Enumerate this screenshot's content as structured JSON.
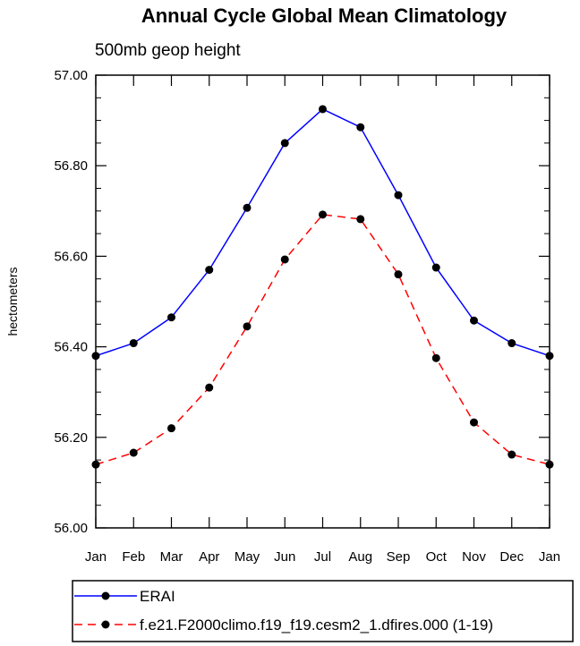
{
  "chart_data": {
    "type": "line",
    "title": "Annual Cycle Global Mean Climatology",
    "subtitle": "500mb geop height",
    "xlabel": "",
    "ylabel": "hectometers",
    "categories": [
      "Jan",
      "Feb",
      "Mar",
      "Apr",
      "May",
      "Jun",
      "Jul",
      "Aug",
      "Sep",
      "Oct",
      "Nov",
      "Dec",
      "Jan"
    ],
    "ylim": [
      56.0,
      57.0
    ],
    "yticks": [
      56.0,
      56.2,
      56.4,
      56.6,
      56.8,
      57.0
    ],
    "ytick_labels": [
      "56.00",
      "56.20",
      "56.40",
      "56.60",
      "56.80",
      "57.00"
    ],
    "y_minor_step": 0.05,
    "grid": false,
    "legend_position": "bottom",
    "series": [
      {
        "name": "ERAI",
        "color": "#0000ff",
        "line_style": "solid",
        "marker": "circle",
        "values": [
          56.38,
          56.408,
          56.465,
          56.57,
          56.707,
          56.85,
          56.925,
          56.885,
          56.735,
          56.575,
          56.458,
          56.408,
          56.38
        ]
      },
      {
        "name": "f.e21.F2000climo.f19_f19.cesm2_1.dfires.000 (1-19)",
        "color": "#ff0000",
        "line_style": "dashed",
        "marker": "circle",
        "values": [
          56.14,
          56.166,
          56.22,
          56.31,
          56.445,
          56.593,
          56.692,
          56.682,
          56.56,
          56.375,
          56.233,
          56.162,
          56.14
        ]
      }
    ]
  }
}
